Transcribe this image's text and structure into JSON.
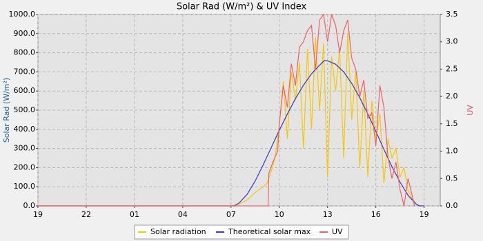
{
  "chart_data": {
    "type": "line",
    "title": "Solar Rad (W/m²) &  UV Index",
    "ylabel": "Solar Rad (W/m²)",
    "y2label": "UV",
    "xlim": [
      19,
      44
    ],
    "ylim": [
      0,
      1000
    ],
    "y2lim": [
      0,
      3.5
    ],
    "xticks": [
      {
        "value": 19,
        "label": "19"
      },
      {
        "value": 22,
        "label": "22"
      },
      {
        "value": 25,
        "label": "01"
      },
      {
        "value": 28,
        "label": "04"
      },
      {
        "value": 31,
        "label": "07"
      },
      {
        "value": 34,
        "label": "10"
      },
      {
        "value": 37,
        "label": "13"
      },
      {
        "value": 40,
        "label": "16"
      },
      {
        "value": 43,
        "label": "19"
      }
    ],
    "yticks": [
      {
        "value": 0,
        "label": "0.0"
      },
      {
        "value": 100,
        "label": "100.0"
      },
      {
        "value": 200,
        "label": "200.0"
      },
      {
        "value": 300,
        "label": "300.0"
      },
      {
        "value": 400,
        "label": "400.0"
      },
      {
        "value": 500,
        "label": "500.0"
      },
      {
        "value": 600,
        "label": "600.0"
      },
      {
        "value": 700,
        "label": "700.0"
      },
      {
        "value": 800,
        "label": "800.0"
      },
      {
        "value": 900,
        "label": "900.0"
      },
      {
        "value": 1000,
        "label": "1000.0"
      }
    ],
    "y2ticks": [
      {
        "value": 0,
        "label": "0.0"
      },
      {
        "value": 0.5,
        "label": "0.5"
      },
      {
        "value": 1,
        "label": "1.0"
      },
      {
        "value": 1.5,
        "label": "1.5"
      },
      {
        "value": 2,
        "label": "2.0"
      },
      {
        "value": 2.5,
        "label": "2.5"
      },
      {
        "value": 3,
        "label": "3.0"
      },
      {
        "value": 3.5,
        "label": "3.5"
      }
    ],
    "grid": true,
    "legend": "lower center",
    "series": [
      {
        "name": "Solar radiation",
        "color": "#f5c800",
        "x": [
          19,
          31,
          31.5,
          32,
          32.5,
          33,
          33.25,
          33.5,
          33.75,
          34,
          34.25,
          34.5,
          34.75,
          35,
          35.25,
          35.5,
          35.75,
          36,
          36.25,
          36.5,
          36.75,
          37,
          37.25,
          37.5,
          37.75,
          38,
          38.25,
          38.5,
          38.75,
          39,
          39.25,
          39.5,
          39.75,
          40,
          40.25,
          40.5,
          40.75,
          41,
          41.25,
          41.5,
          41.75,
          42,
          42.25,
          42.5,
          42.75,
          43
        ],
        "values": [
          0,
          0,
          10,
          30,
          70,
          100,
          120,
          180,
          260,
          420,
          650,
          350,
          700,
          550,
          750,
          300,
          820,
          400,
          880,
          500,
          850,
          150,
          780,
          600,
          820,
          250,
          900,
          450,
          700,
          200,
          600,
          150,
          550,
          350,
          480,
          120,
          350,
          250,
          300,
          150,
          200,
          80,
          40,
          10,
          0,
          0
        ]
      },
      {
        "name": "Theoretical solar max",
        "color": "#3636d0",
        "x": [
          19,
          31.2,
          31.5,
          32,
          32.5,
          33,
          33.5,
          34,
          34.5,
          35,
          35.5,
          36,
          36.5,
          36.8,
          37,
          37.5,
          38,
          38.5,
          39,
          39.5,
          40,
          40.5,
          41,
          41.5,
          42,
          42.5,
          42.7,
          43
        ],
        "values": [
          0,
          0,
          15,
          60,
          130,
          215,
          305,
          395,
          480,
          560,
          630,
          690,
          735,
          760,
          758,
          740,
          700,
          640,
          565,
          480,
          390,
          295,
          205,
          125,
          55,
          10,
          0,
          0
        ]
      },
      {
        "name": "UV",
        "color": "#f06060",
        "axis": "y2",
        "x": [
          19,
          33.3,
          33.35,
          33.6,
          33.9,
          34,
          34.25,
          34.5,
          34.75,
          35,
          35.25,
          35.5,
          35.75,
          36,
          36.25,
          36.5,
          36.75,
          37,
          37.25,
          37.5,
          37.75,
          38,
          38.25,
          38.5,
          38.75,
          39,
          39.25,
          39.5,
          39.75,
          40,
          40.25,
          40.5,
          40.75,
          41,
          41.25,
          41.5,
          41.75,
          42,
          42.25,
          42.4
        ],
        "values": [
          0,
          0,
          0.6,
          0.8,
          1.0,
          1.5,
          2.2,
          1.8,
          2.6,
          2.2,
          2.9,
          3.0,
          3.2,
          3.3,
          2.5,
          3.4,
          3.5,
          3.0,
          3.5,
          3.3,
          2.8,
          3.2,
          3.4,
          2.7,
          2.5,
          2.0,
          2.3,
          1.6,
          1.7,
          1.1,
          2.2,
          1.8,
          0.9,
          0.5,
          0.8,
          0.3,
          0.0,
          0.5,
          0.2,
          0
        ]
      }
    ]
  }
}
